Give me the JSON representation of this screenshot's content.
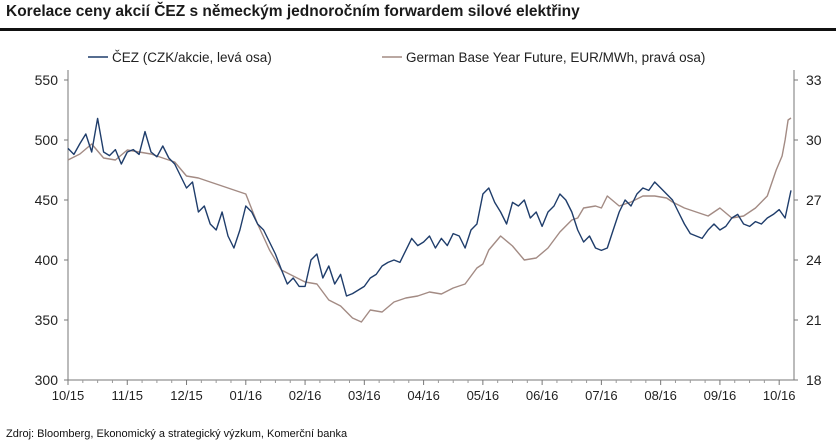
{
  "title": "Korelace ceny akcií ČEZ s německým jednoročním forwardem silové elektřiny",
  "source": "Zdroj: Bloomberg, Ekonomický a strategický výzkum, Komerční banka",
  "chart_data": {
    "type": "line",
    "legend_position": "top",
    "grid": false,
    "x_ticks": [
      "10/15",
      "11/15",
      "12/15",
      "01/16",
      "02/16",
      "03/16",
      "04/16",
      "05/16",
      "06/16",
      "07/16",
      "08/16",
      "09/16",
      "10/16"
    ],
    "x_range": [
      0,
      12.25
    ],
    "y_left": {
      "ticks": [
        300,
        350,
        400,
        450,
        500,
        550
      ],
      "range": [
        300,
        550
      ]
    },
    "y_right": {
      "ticks": [
        18,
        21,
        24,
        27,
        30,
        33
      ],
      "range": [
        18,
        33
      ]
    },
    "series": [
      {
        "name": "ČEZ (CZK/akcie, levá osa)",
        "axis": "left",
        "color": "#1f3d6b",
        "points": [
          [
            0.0,
            493
          ],
          [
            0.1,
            488
          ],
          [
            0.2,
            497
          ],
          [
            0.3,
            505
          ],
          [
            0.4,
            490
          ],
          [
            0.5,
            518
          ],
          [
            0.6,
            490
          ],
          [
            0.7,
            487
          ],
          [
            0.8,
            492
          ],
          [
            0.9,
            480
          ],
          [
            1.0,
            490
          ],
          [
            1.1,
            492
          ],
          [
            1.2,
            488
          ],
          [
            1.3,
            507
          ],
          [
            1.4,
            490
          ],
          [
            1.5,
            486
          ],
          [
            1.6,
            495
          ],
          [
            1.7,
            485
          ],
          [
            1.8,
            480
          ],
          [
            1.9,
            470
          ],
          [
            2.0,
            460
          ],
          [
            2.1,
            465
          ],
          [
            2.2,
            440
          ],
          [
            2.3,
            445
          ],
          [
            2.4,
            430
          ],
          [
            2.5,
            425
          ],
          [
            2.6,
            440
          ],
          [
            2.7,
            420
          ],
          [
            2.8,
            410
          ],
          [
            2.9,
            425
          ],
          [
            3.0,
            445
          ],
          [
            3.1,
            440
          ],
          [
            3.2,
            430
          ],
          [
            3.3,
            425
          ],
          [
            3.4,
            415
          ],
          [
            3.5,
            405
          ],
          [
            3.6,
            392
          ],
          [
            3.7,
            380
          ],
          [
            3.8,
            385
          ],
          [
            3.9,
            378
          ],
          [
            4.0,
            378
          ],
          [
            4.1,
            400
          ],
          [
            4.2,
            405
          ],
          [
            4.3,
            385
          ],
          [
            4.4,
            395
          ],
          [
            4.5,
            380
          ],
          [
            4.6,
            388
          ],
          [
            4.7,
            370
          ],
          [
            4.8,
            372
          ],
          [
            4.9,
            375
          ],
          [
            5.0,
            378
          ],
          [
            5.1,
            385
          ],
          [
            5.2,
            388
          ],
          [
            5.3,
            395
          ],
          [
            5.4,
            398
          ],
          [
            5.5,
            400
          ],
          [
            5.6,
            398
          ],
          [
            5.7,
            408
          ],
          [
            5.8,
            418
          ],
          [
            5.9,
            412
          ],
          [
            6.0,
            415
          ],
          [
            6.1,
            420
          ],
          [
            6.2,
            410
          ],
          [
            6.3,
            418
          ],
          [
            6.4,
            412
          ],
          [
            6.5,
            422
          ],
          [
            6.6,
            420
          ],
          [
            6.7,
            410
          ],
          [
            6.8,
            425
          ],
          [
            6.9,
            430
          ],
          [
            7.0,
            455
          ],
          [
            7.1,
            460
          ],
          [
            7.2,
            448
          ],
          [
            7.3,
            440
          ],
          [
            7.4,
            430
          ],
          [
            7.5,
            448
          ],
          [
            7.6,
            445
          ],
          [
            7.7,
            450
          ],
          [
            7.8,
            435
          ],
          [
            7.9,
            440
          ],
          [
            8.0,
            428
          ],
          [
            8.1,
            440
          ],
          [
            8.2,
            445
          ],
          [
            8.3,
            455
          ],
          [
            8.4,
            450
          ],
          [
            8.5,
            440
          ],
          [
            8.6,
            425
          ],
          [
            8.7,
            415
          ],
          [
            8.8,
            420
          ],
          [
            8.9,
            410
          ],
          [
            9.0,
            408
          ],
          [
            9.1,
            410
          ],
          [
            9.2,
            425
          ],
          [
            9.3,
            440
          ],
          [
            9.4,
            450
          ],
          [
            9.5,
            445
          ],
          [
            9.6,
            455
          ],
          [
            9.7,
            460
          ],
          [
            9.8,
            458
          ],
          [
            9.9,
            465
          ],
          [
            10.0,
            460
          ],
          [
            10.1,
            455
          ],
          [
            10.2,
            450
          ],
          [
            10.3,
            440
          ],
          [
            10.4,
            430
          ],
          [
            10.5,
            422
          ],
          [
            10.6,
            420
          ],
          [
            10.7,
            418
          ],
          [
            10.8,
            425
          ],
          [
            10.9,
            430
          ],
          [
            11.0,
            425
          ],
          [
            11.1,
            428
          ],
          [
            11.2,
            435
          ],
          [
            11.3,
            438
          ],
          [
            11.4,
            430
          ],
          [
            11.5,
            428
          ],
          [
            11.6,
            432
          ],
          [
            11.7,
            430
          ],
          [
            11.8,
            435
          ],
          [
            11.9,
            438
          ],
          [
            12.0,
            442
          ],
          [
            12.1,
            435
          ],
          [
            12.2,
            458
          ]
        ]
      },
      {
        "name": "German Base Year Future, EUR/MWh, pravá osa)",
        "axis": "right",
        "color": "#a38b84",
        "points": [
          [
            0.0,
            29.0
          ],
          [
            0.2,
            29.3
          ],
          [
            0.4,
            29.8
          ],
          [
            0.6,
            29.1
          ],
          [
            0.8,
            29.0
          ],
          [
            1.0,
            29.5
          ],
          [
            1.2,
            29.4
          ],
          [
            1.4,
            29.3
          ],
          [
            1.6,
            29.1
          ],
          [
            1.8,
            28.9
          ],
          [
            2.0,
            28.2
          ],
          [
            2.2,
            28.1
          ],
          [
            2.4,
            27.9
          ],
          [
            2.6,
            27.7
          ],
          [
            2.8,
            27.5
          ],
          [
            3.0,
            27.3
          ],
          [
            3.2,
            25.8
          ],
          [
            3.4,
            24.5
          ],
          [
            3.6,
            23.5
          ],
          [
            3.8,
            23.2
          ],
          [
            4.0,
            22.9
          ],
          [
            4.2,
            22.8
          ],
          [
            4.4,
            22.0
          ],
          [
            4.6,
            21.7
          ],
          [
            4.8,
            21.1
          ],
          [
            4.95,
            20.9
          ],
          [
            5.1,
            21.5
          ],
          [
            5.3,
            21.4
          ],
          [
            5.5,
            21.9
          ],
          [
            5.7,
            22.1
          ],
          [
            5.9,
            22.2
          ],
          [
            6.1,
            22.4
          ],
          [
            6.3,
            22.3
          ],
          [
            6.5,
            22.6
          ],
          [
            6.7,
            22.8
          ],
          [
            6.9,
            23.6
          ],
          [
            7.0,
            23.8
          ],
          [
            7.1,
            24.5
          ],
          [
            7.3,
            25.2
          ],
          [
            7.5,
            24.7
          ],
          [
            7.7,
            24.0
          ],
          [
            7.9,
            24.1
          ],
          [
            8.1,
            24.6
          ],
          [
            8.3,
            25.4
          ],
          [
            8.5,
            26.0
          ],
          [
            8.6,
            26.1
          ],
          [
            8.7,
            26.6
          ],
          [
            8.9,
            26.7
          ],
          [
            9.0,
            26.6
          ],
          [
            9.1,
            27.2
          ],
          [
            9.3,
            26.7
          ],
          [
            9.5,
            26.9
          ],
          [
            9.7,
            27.2
          ],
          [
            9.9,
            27.2
          ],
          [
            10.1,
            27.1
          ],
          [
            10.2,
            26.9
          ],
          [
            10.4,
            26.6
          ],
          [
            10.6,
            26.4
          ],
          [
            10.8,
            26.2
          ],
          [
            11.0,
            26.6
          ],
          [
            11.2,
            26.1
          ],
          [
            11.4,
            26.2
          ],
          [
            11.6,
            26.6
          ],
          [
            11.8,
            27.2
          ],
          [
            11.95,
            28.5
          ],
          [
            12.05,
            29.2
          ],
          [
            12.1,
            30.0
          ],
          [
            12.15,
            31.0
          ],
          [
            12.2,
            31.1
          ]
        ]
      }
    ]
  }
}
